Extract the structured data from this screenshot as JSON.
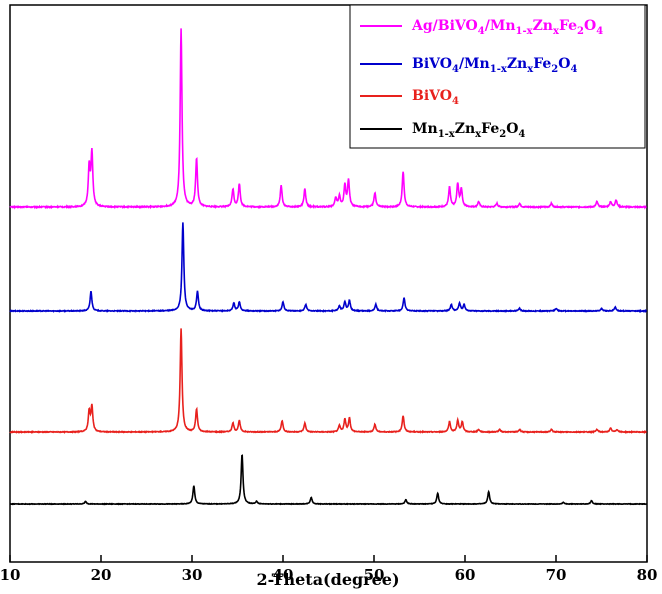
{
  "chart_data": {
    "type": "line",
    "title": "",
    "xlabel": "2-Theta(degree)",
    "ylabel": "",
    "xlim": [
      10,
      80
    ],
    "xticks": [
      "10",
      "20",
      "30",
      "40",
      "50",
      "60",
      "70",
      "80"
    ],
    "yticks_shown": false,
    "grid": false,
    "legend_position": "top-right",
    "series": [
      {
        "name": "Ag/BiVO4/Mn1-xZnxFe2O4",
        "legend_parts": [
          [
            "Ag/BiVO",
            "n"
          ],
          [
            "4",
            "sub"
          ],
          [
            "/Mn",
            "n"
          ],
          [
            "1-x",
            "sub"
          ],
          [
            "Zn",
            "n"
          ],
          [
            "x",
            "sub"
          ],
          [
            "Fe",
            "n"
          ],
          [
            "2",
            "sub"
          ],
          [
            "O",
            "n"
          ],
          [
            "4",
            "sub"
          ]
        ],
        "color": "#ff00ff",
        "baseline": 0.0,
        "peaks": [
          [
            18.7,
            0.22
          ],
          [
            19.0,
            0.3
          ],
          [
            28.8,
            1.0
          ],
          [
            30.5,
            0.27
          ],
          [
            34.5,
            0.1
          ],
          [
            35.2,
            0.13
          ],
          [
            39.8,
            0.12
          ],
          [
            42.4,
            0.1
          ],
          [
            45.8,
            0.05
          ],
          [
            46.2,
            0.06
          ],
          [
            46.8,
            0.12
          ],
          [
            47.2,
            0.15
          ],
          [
            50.1,
            0.08
          ],
          [
            53.2,
            0.2
          ],
          [
            58.3,
            0.11
          ],
          [
            59.2,
            0.13
          ],
          [
            59.6,
            0.1
          ],
          [
            61.5,
            0.03
          ],
          [
            63.5,
            0.02
          ],
          [
            66.0,
            0.02
          ],
          [
            69.5,
            0.02
          ],
          [
            74.5,
            0.03
          ],
          [
            76.0,
            0.03
          ],
          [
            76.6,
            0.04
          ]
        ]
      },
      {
        "name": "BiVO4/Mn1-xZnxFe2O4",
        "legend_parts": [
          [
            "BiVO",
            "n"
          ],
          [
            "4",
            "sub"
          ],
          [
            "/Mn",
            "n"
          ],
          [
            "1-x",
            "sub"
          ],
          [
            "Zn",
            "n"
          ],
          [
            "x",
            "sub"
          ],
          [
            "Fe",
            "n"
          ],
          [
            "2",
            "sub"
          ],
          [
            "O",
            "n"
          ],
          [
            "4",
            "sub"
          ]
        ],
        "color": "#0000cc",
        "baseline": 0.0,
        "peaks": [
          [
            18.9,
            0.15
          ],
          [
            29.0,
            0.68
          ],
          [
            30.6,
            0.15
          ],
          [
            34.6,
            0.06
          ],
          [
            35.2,
            0.07
          ],
          [
            40.0,
            0.07
          ],
          [
            42.5,
            0.05
          ],
          [
            46.2,
            0.04
          ],
          [
            46.8,
            0.07
          ],
          [
            47.3,
            0.08
          ],
          [
            50.2,
            0.05
          ],
          [
            53.3,
            0.1
          ],
          [
            58.5,
            0.05
          ],
          [
            59.4,
            0.06
          ],
          [
            59.9,
            0.05
          ],
          [
            66.0,
            0.02
          ],
          [
            70.0,
            0.02
          ],
          [
            75.0,
            0.02
          ],
          [
            76.5,
            0.03
          ]
        ]
      },
      {
        "name": "BiVO4",
        "legend_parts": [
          [
            "BiVO",
            "n"
          ],
          [
            "4",
            "sub"
          ]
        ],
        "color": "#e8211d",
        "baseline": 0.0,
        "peaks": [
          [
            18.7,
            0.16
          ],
          [
            19.0,
            0.2
          ],
          [
            28.8,
            0.82
          ],
          [
            30.5,
            0.18
          ],
          [
            34.5,
            0.07
          ],
          [
            35.2,
            0.09
          ],
          [
            39.9,
            0.09
          ],
          [
            42.4,
            0.07
          ],
          [
            46.2,
            0.05
          ],
          [
            46.8,
            0.1
          ],
          [
            47.3,
            0.11
          ],
          [
            50.1,
            0.06
          ],
          [
            53.2,
            0.13
          ],
          [
            58.3,
            0.08
          ],
          [
            59.2,
            0.09
          ],
          [
            59.7,
            0.08
          ],
          [
            61.5,
            0.02
          ],
          [
            63.8,
            0.02
          ],
          [
            66.0,
            0.02
          ],
          [
            69.5,
            0.02
          ],
          [
            74.5,
            0.02
          ],
          [
            76.0,
            0.03
          ],
          [
            76.7,
            0.02
          ]
        ]
      },
      {
        "name": "Mn1-xZnxFe2O4",
        "legend_parts": [
          [
            "Mn",
            "n"
          ],
          [
            "1-x",
            "sub"
          ],
          [
            "Zn",
            "n"
          ],
          [
            "x",
            "sub"
          ],
          [
            "Fe",
            "n"
          ],
          [
            "2",
            "sub"
          ],
          [
            "O",
            "n"
          ],
          [
            "4",
            "sub"
          ]
        ],
        "color": "#000000",
        "baseline": 0.0,
        "peaks": [
          [
            18.3,
            0.03
          ],
          [
            30.2,
            0.22
          ],
          [
            35.5,
            0.6
          ],
          [
            37.1,
            0.03
          ],
          [
            43.1,
            0.08
          ],
          [
            53.5,
            0.05
          ],
          [
            57.0,
            0.13
          ],
          [
            62.6,
            0.15
          ],
          [
            70.8,
            0.02
          ],
          [
            73.9,
            0.04
          ]
        ]
      }
    ]
  }
}
